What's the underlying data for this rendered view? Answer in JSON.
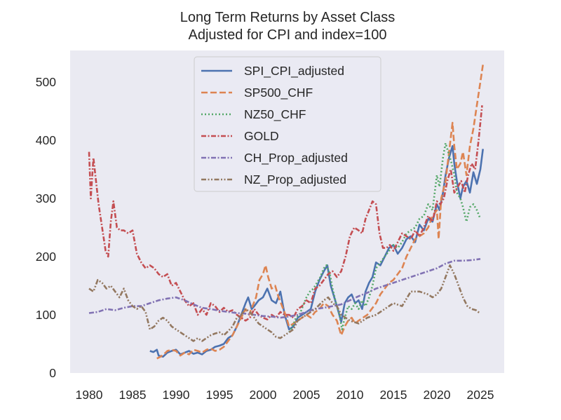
{
  "chart_data": {
    "type": "line",
    "title": "Long Term Returns by Asset Class",
    "subtitle": "Adjusted for CPI and index=100",
    "xlabel": "",
    "ylabel": "",
    "xlim": [
      1977.8,
      2027.7
    ],
    "ylim": [
      0,
      555
    ],
    "xticks": [
      1980,
      1985,
      1990,
      1995,
      2000,
      2005,
      2010,
      2015,
      2020,
      2025
    ],
    "yticks": [
      0,
      100,
      200,
      300,
      400,
      500
    ],
    "xtick_labels": [
      "1980",
      "1985",
      "1990",
      "1995",
      "2000",
      "2005",
      "2010",
      "2015",
      "2020",
      "2025"
    ],
    "ytick_labels": [
      "0",
      "100",
      "200",
      "300",
      "400",
      "500"
    ],
    "grid": false,
    "legend_position": "top-center",
    "background": "#eaeaf2",
    "series": [
      {
        "name": "SPI_CPI_adjusted",
        "color": "#4c72b0",
        "style": "solid",
        "x": [
          1987.0,
          1987.4,
          1987.8,
          1988.0,
          1988.5,
          1989.0,
          1989.5,
          1990.0,
          1990.5,
          1991.0,
          1991.5,
          1992.0,
          1992.5,
          1993.0,
          1993.5,
          1994.0,
          1994.5,
          1995.0,
          1995.5,
          1996.0,
          1996.5,
          1997.0,
          1997.5,
          1998.0,
          1998.3,
          1998.7,
          1999.0,
          1999.5,
          2000.0,
          2000.5,
          2001.0,
          2001.5,
          2002.0,
          2002.5,
          2003.0,
          2003.5,
          2004.0,
          2004.5,
          2005.0,
          2005.5,
          2006.0,
          2006.5,
          2007.0,
          2007.4,
          2007.8,
          2008.2,
          2008.6,
          2009.0,
          2009.4,
          2009.8,
          2010.2,
          2010.6,
          2011.0,
          2011.4,
          2011.8,
          2012.2,
          2012.6,
          2013.0,
          2013.5,
          2014.0,
          2014.5,
          2015.0,
          2015.5,
          2016.0,
          2016.5,
          2017.0,
          2017.5,
          2018.0,
          2018.5,
          2019.0,
          2019.5,
          2020.0,
          2020.3,
          2020.7,
          2021.0,
          2021.4,
          2021.8,
          2022.0,
          2022.3,
          2022.7,
          2023.0,
          2023.4,
          2023.8,
          2024.2,
          2024.6,
          2025.0,
          2025.3
        ],
        "y": [
          38,
          36,
          40,
          30,
          28,
          35,
          38,
          40,
          32,
          35,
          38,
          33,
          35,
          32,
          38,
          40,
          45,
          47,
          50,
          60,
          65,
          80,
          100,
          120,
          130,
          110,
          115,
          125,
          130,
          145,
          125,
          120,
          140,
          100,
          75,
          80,
          95,
          100,
          105,
          110,
          140,
          160,
          175,
          185,
          150,
          130,
          110,
          88,
          120,
          130,
          135,
          120,
          125,
          110,
          140,
          155,
          165,
          190,
          185,
          200,
          215,
          220,
          205,
          215,
          230,
          235,
          225,
          255,
          245,
          265,
          260,
          290,
          280,
          310,
          340,
          370,
          390,
          360,
          330,
          300,
          320,
          330,
          310,
          345,
          325,
          350,
          385
        ]
      },
      {
        "name": "SP500_CHF",
        "color": "#dd8452",
        "style": "dashed",
        "x": [
          1987.8,
          1988.2,
          1988.6,
          1989.0,
          1989.5,
          1990.0,
          1990.5,
          1991.0,
          1991.5,
          1992.0,
          1992.5,
          1993.0,
          1993.5,
          1994.0,
          1994.5,
          1995.0,
          1995.5,
          1996.0,
          1996.5,
          1997.0,
          1997.5,
          1998.0,
          1998.4,
          1998.8,
          1999.2,
          1999.6,
          2000.0,
          2000.3,
          2000.6,
          2001.0,
          2001.4,
          2001.8,
          2002.2,
          2002.6,
          2003.0,
          2003.5,
          2004.0,
          2004.5,
          2005.0,
          2005.5,
          2006.0,
          2006.5,
          2007.0,
          2007.5,
          2008.0,
          2008.5,
          2009.0,
          2009.4,
          2009.8,
          2010.2,
          2010.6,
          2011.0,
          2011.5,
          2012.0,
          2012.5,
          2013.0,
          2013.5,
          2014.0,
          2014.5,
          2015.0,
          2015.5,
          2016.0,
          2016.5,
          2017.0,
          2017.5,
          2018.0,
          2018.5,
          2019.0,
          2019.5,
          2020.0,
          2020.2,
          2020.5,
          2021.0,
          2021.4,
          2021.8,
          2022.0,
          2022.3,
          2022.7,
          2023.0,
          2023.4,
          2023.8,
          2024.2,
          2024.6,
          2025.0,
          2025.3
        ],
        "y": [
          25,
          28,
          32,
          38,
          40,
          38,
          30,
          35,
          32,
          40,
          38,
          35,
          40,
          42,
          38,
          40,
          45,
          55,
          65,
          80,
          95,
          110,
          100,
          115,
          130,
          160,
          170,
          185,
          165,
          145,
          150,
          130,
          115,
          100,
          80,
          85,
          90,
          95,
          100,
          95,
          105,
          110,
          120,
          115,
          100,
          90,
          65,
          80,
          90,
          95,
          85,
          90,
          95,
          100,
          110,
          120,
          135,
          145,
          155,
          160,
          170,
          180,
          200,
          215,
          230,
          235,
          240,
          250,
          270,
          280,
          230,
          300,
          330,
          380,
          430,
          390,
          350,
          360,
          380,
          340,
          390,
          420,
          460,
          500,
          530
        ]
      },
      {
        "name": "NZ50_CHF",
        "color": "#55a868",
        "style": "dotted",
        "x": [
          2003.0,
          2003.4,
          2003.8,
          2004.2,
          2004.6,
          2005.0,
          2005.4,
          2005.8,
          2006.2,
          2006.6,
          2007.0,
          2007.3,
          2007.7,
          2008.0,
          2008.4,
          2008.8,
          2009.1,
          2009.4,
          2009.8,
          2010.2,
          2010.6,
          2011.0,
          2011.4,
          2011.8,
          2012.2,
          2012.6,
          2013.0,
          2013.5,
          2014.0,
          2014.5,
          2015.0,
          2015.5,
          2016.0,
          2016.5,
          2017.0,
          2017.5,
          2018.0,
          2018.5,
          2019.0,
          2019.5,
          2020.0,
          2020.3,
          2020.7,
          2021.0,
          2021.3,
          2021.7,
          2022.0,
          2022.3,
          2022.7,
          2023.0,
          2023.4,
          2023.8,
          2024.2,
          2024.6,
          2025.0
        ],
        "y": [
          70,
          80,
          95,
          100,
          115,
          130,
          140,
          145,
          155,
          165,
          180,
          185,
          170,
          145,
          120,
          100,
          75,
          95,
          115,
          110,
          120,
          110,
          125,
          115,
          130,
          150,
          180,
          190,
          200,
          210,
          220,
          215,
          225,
          240,
          245,
          250,
          265,
          270,
          290,
          280,
          340,
          320,
          370,
          395,
          380,
          360,
          340,
          310,
          300,
          285,
          260,
          285,
          290,
          280,
          265
        ]
      },
      {
        "name": "GOLD",
        "color": "#c44e52",
        "style": "dashdot",
        "x": [
          1980.0,
          1980.2,
          1980.5,
          1980.8,
          1981.1,
          1981.5,
          1981.9,
          1982.2,
          1982.5,
          1982.8,
          1983.2,
          1983.6,
          1984.0,
          1984.5,
          1985.0,
          1985.5,
          1986.0,
          1986.5,
          1987.0,
          1987.5,
          1988.0,
          1988.5,
          1989.0,
          1989.5,
          1990.0,
          1990.5,
          1991.0,
          1991.5,
          1992.0,
          1992.5,
          1993.0,
          1993.5,
          1994.0,
          1994.5,
          1995.0,
          1995.5,
          1996.0,
          1996.5,
          1997.0,
          1997.5,
          1998.0,
          1998.5,
          1999.0,
          1999.5,
          2000.0,
          2000.5,
          2001.0,
          2001.5,
          2002.0,
          2002.5,
          2003.0,
          2003.5,
          2004.0,
          2004.5,
          2005.0,
          2005.5,
          2006.0,
          2006.5,
          2007.0,
          2007.5,
          2008.0,
          2008.5,
          2009.0,
          2009.5,
          2010.0,
          2010.5,
          2011.0,
          2011.4,
          2011.8,
          2012.2,
          2012.6,
          2013.0,
          2013.4,
          2013.8,
          2014.2,
          2014.6,
          2015.0,
          2015.5,
          2016.0,
          2016.5,
          2017.0,
          2017.5,
          2018.0,
          2018.5,
          2019.0,
          2019.5,
          2020.0,
          2020.4,
          2020.8,
          2021.2,
          2021.6,
          2022.0,
          2022.4,
          2022.8,
          2023.2,
          2023.6,
          2024.0,
          2024.4,
          2024.8,
          2025.2
        ],
        "y": [
          380,
          300,
          370,
          330,
          290,
          250,
          210,
          200,
          260,
          295,
          250,
          245,
          245,
          240,
          245,
          205,
          190,
          180,
          185,
          180,
          170,
          165,
          170,
          150,
          155,
          140,
          125,
          115,
          120,
          100,
          110,
          100,
          120,
          115,
          105,
          112,
          105,
          108,
          100,
          95,
          90,
          95,
          110,
          100,
          95,
          92,
          100,
          95,
          105,
          100,
          100,
          95,
          110,
          115,
          125,
          120,
          145,
          150,
          160,
          170,
          175,
          165,
          175,
          200,
          235,
          250,
          245,
          240,
          265,
          280,
          295,
          290,
          240,
          215,
          215,
          220,
          210,
          225,
          240,
          235,
          230,
          245,
          235,
          250,
          270,
          260,
          295,
          290,
          300,
          330,
          350,
          310,
          320,
          330,
          310,
          340,
          360,
          350,
          400,
          460
        ]
      },
      {
        "name": "CH_Prop_adjusted",
        "color": "#8172b3",
        "style": "dashdot",
        "x": [
          1980.0,
          1981.0,
          1982.0,
          1983.0,
          1984.0,
          1985.0,
          1986.0,
          1987.0,
          1988.0,
          1989.0,
          1990.0,
          1991.0,
          1992.0,
          1993.0,
          1994.0,
          1995.0,
          1996.0,
          1997.0,
          1998.0,
          1999.0,
          2000.0,
          2001.0,
          2002.0,
          2003.0,
          2004.0,
          2005.0,
          2006.0,
          2007.0,
          2008.0,
          2009.0,
          2010.0,
          2011.0,
          2012.0,
          2013.0,
          2014.0,
          2015.0,
          2016.0,
          2017.0,
          2018.0,
          2019.0,
          2020.0,
          2021.0,
          2022.0,
          2023.0,
          2024.0,
          2025.0
        ],
        "y": [
          103,
          105,
          110,
          108,
          112,
          115,
          115,
          120,
          125,
          128,
          130,
          125,
          118,
          112,
          110,
          107,
          105,
          103,
          102,
          100,
          98,
          97,
          95,
          97,
          100,
          105,
          110,
          112,
          115,
          118,
          125,
          132,
          138,
          145,
          150,
          155,
          160,
          165,
          170,
          175,
          180,
          188,
          193,
          193,
          194,
          196
        ]
      },
      {
        "name": "NZ_Prop_adjusted",
        "color": "#937860",
        "style": "dashdotdot",
        "x": [
          1980.0,
          1980.5,
          1981.0,
          1981.5,
          1982.0,
          1982.5,
          1983.0,
          1983.5,
          1984.0,
          1984.5,
          1985.0,
          1985.5,
          1986.0,
          1986.5,
          1987.0,
          1987.5,
          1988.0,
          1988.5,
          1989.0,
          1989.5,
          1990.0,
          1990.5,
          1991.0,
          1991.5,
          1992.0,
          1992.5,
          1993.0,
          1993.5,
          1994.0,
          1994.5,
          1995.0,
          1995.5,
          1996.0,
          1996.5,
          1997.0,
          1997.5,
          1998.0,
          1998.5,
          1999.0,
          1999.5,
          2000.0,
          2000.5,
          2001.0,
          2001.5,
          2002.0,
          2002.5,
          2003.0,
          2003.5,
          2004.0,
          2004.5,
          2005.0,
          2005.5,
          2006.0,
          2007.0,
          2007.5,
          2008.0,
          2008.5,
          2009.0,
          2010.0,
          2011.0,
          2012.0,
          2013.0,
          2014.0,
          2015.0,
          2016.0,
          2017.0,
          2018.0,
          2019.0,
          2019.5,
          2020.0,
          2020.5,
          2021.0,
          2021.5,
          2022.0,
          2022.5,
          2023.0,
          2023.5,
          2024.0,
          2024.5,
          2025.0
        ],
        "y": [
          145,
          140,
          160,
          155,
          145,
          150,
          140,
          130,
          145,
          125,
          115,
          110,
          115,
          105,
          75,
          80,
          90,
          95,
          90,
          80,
          75,
          70,
          65,
          60,
          55,
          60,
          55,
          60,
          65,
          68,
          70,
          65,
          72,
          80,
          95,
          100,
          110,
          105,
          95,
          85,
          80,
          75,
          70,
          62,
          60,
          65,
          70,
          75,
          90,
          95,
          100,
          105,
          110,
          125,
          130,
          120,
          115,
          100,
          90,
          85,
          95,
          100,
          110,
          120,
          115,
          140,
          140,
          135,
          130,
          135,
          145,
          165,
          185,
          170,
          150,
          130,
          115,
          110,
          108,
          102
        ]
      }
    ]
  }
}
